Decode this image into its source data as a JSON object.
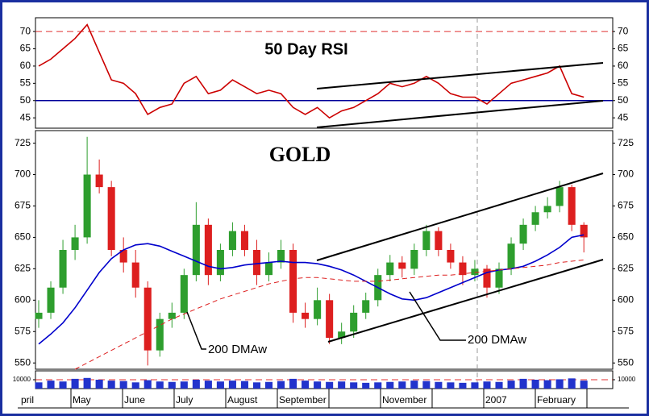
{
  "chart_data": [
    {
      "type": "line",
      "title": "50 Day RSI",
      "color": "#cc0000",
      "values": [
        60,
        62,
        65,
        68,
        72,
        64,
        56,
        55,
        52,
        46,
        48,
        49,
        55,
        57,
        52,
        53,
        56,
        54,
        52,
        53,
        52,
        48,
        46,
        48,
        45,
        47,
        48,
        50,
        52,
        55,
        54,
        55,
        57,
        55,
        52,
        51,
        51,
        49,
        52,
        55,
        56,
        57,
        58,
        60,
        52,
        51
      ],
      "ylim": [
        42,
        74
      ],
      "yticks": [
        45,
        50,
        55,
        60,
        65,
        70
      ],
      "reference_lines": [
        {
          "value": 70,
          "color": "#e03030",
          "dashed": true
        },
        {
          "value": 50,
          "color": "#000099",
          "dashed": false
        }
      ]
    },
    {
      "type": "candlestick",
      "title": "GOLD",
      "open": [
        585,
        590,
        610,
        640,
        650,
        700,
        690,
        640,
        630,
        610,
        560,
        585,
        590,
        620,
        660,
        620,
        640,
        655,
        640,
        620,
        630,
        640,
        590,
        585,
        600,
        570,
        575,
        590,
        600,
        620,
        630,
        625,
        640,
        655,
        640,
        630,
        620,
        625,
        610,
        625,
        645,
        660,
        670,
        675,
        690,
        660
      ],
      "high": [
        600,
        615,
        648,
        660,
        730,
        712,
        695,
        650,
        640,
        615,
        590,
        598,
        625,
        678,
        665,
        645,
        662,
        660,
        648,
        638,
        648,
        645,
        598,
        610,
        605,
        582,
        596,
        606,
        625,
        636,
        635,
        645,
        660,
        658,
        645,
        635,
        632,
        628,
        630,
        650,
        665,
        675,
        682,
        695,
        692,
        662
      ],
      "low": [
        578,
        585,
        605,
        632,
        645,
        685,
        635,
        622,
        602,
        548,
        555,
        578,
        585,
        615,
        612,
        615,
        635,
        635,
        612,
        615,
        625,
        582,
        578,
        580,
        565,
        565,
        570,
        585,
        595,
        615,
        618,
        620,
        635,
        635,
        625,
        612,
        615,
        602,
        605,
        620,
        640,
        655,
        665,
        670,
        655,
        638
      ],
      "close": [
        590,
        610,
        640,
        650,
        700,
        690,
        640,
        630,
        610,
        560,
        585,
        590,
        620,
        660,
        620,
        640,
        655,
        640,
        620,
        630,
        640,
        590,
        585,
        600,
        570,
        575,
        590,
        600,
        620,
        630,
        625,
        640,
        655,
        640,
        630,
        620,
        625,
        610,
        625,
        645,
        660,
        670,
        675,
        690,
        660,
        650
      ],
      "up_color": "#2e9e2e",
      "down_color": "#dd1f1f",
      "series": [
        {
          "color": "#0000cc",
          "dashed": false,
          "values": [
            565,
            573,
            582,
            594,
            608,
            622,
            633,
            640,
            644,
            645,
            643,
            639,
            635,
            631,
            627,
            625,
            626,
            628,
            629,
            630,
            631,
            630,
            630,
            629,
            627,
            624,
            620,
            615,
            610,
            605,
            601,
            600,
            602,
            606,
            610,
            614,
            618,
            622,
            624,
            625,
            627,
            631,
            636,
            642,
            650,
            652
          ]
        },
        {
          "color": "#dd2020",
          "dashed": true,
          "values": [
            null,
            null,
            null,
            545,
            550,
            555,
            560,
            565,
            570,
            575,
            580,
            585,
            589,
            593,
            597,
            601,
            604,
            607,
            610,
            613,
            615,
            617,
            618,
            618,
            617,
            616,
            615,
            615,
            615,
            616,
            617,
            618,
            619,
            620,
            620,
            621,
            622,
            623,
            624,
            625,
            626,
            627,
            628,
            630,
            631,
            632
          ]
        }
      ],
      "annotations": [
        "200 DMAw",
        "200 DMAw"
      ],
      "ylim": [
        545,
        735
      ],
      "yticks": [
        550,
        575,
        600,
        625,
        650,
        675,
        700,
        725
      ]
    },
    {
      "type": "bar",
      "color": "#2233cc",
      "values": [
        7000,
        9000,
        8000,
        11000,
        12000,
        10000,
        9000,
        8500,
        7000,
        9500,
        8000,
        7500,
        8000,
        10000,
        9000,
        8000,
        9000,
        8500,
        7000,
        7500,
        8500,
        11000,
        9000,
        8000,
        7500,
        8000,
        7000,
        6500,
        7000,
        7500,
        8000,
        9000,
        8500,
        7500,
        7000,
        6500,
        7000,
        8000,
        7500,
        9000,
        11000,
        10000,
        9500,
        10500,
        11500,
        9000
      ],
      "ylim": [
        0,
        20000
      ],
      "yticks": [
        10000
      ],
      "reference_lines": [
        {
          "value": 10000,
          "color": "#e03030",
          "dashed": true
        }
      ],
      "months": [
        "pril",
        "May",
        "June",
        "July",
        "August",
        "September",
        null,
        "November",
        null,
        "2007",
        "February",
        null
      ]
    }
  ]
}
